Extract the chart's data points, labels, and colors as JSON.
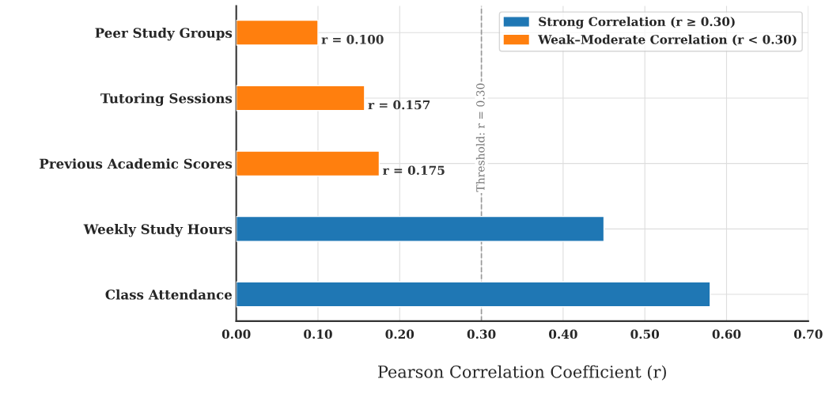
{
  "chart_data": {
    "type": "bar",
    "orientation": "horizontal",
    "xlabel": "Pearson Correlation Coefficient (r)",
    "categories": [
      "Peer Study Groups",
      "Tutoring Sessions",
      "Previous Academic Scores",
      "Weekly Study Hours",
      "Class Attendance"
    ],
    "series": [
      {
        "name": "Strong Correlation (r ≥ 0.30)",
        "color": "#1f77b4",
        "values": [
          null,
          null,
          null,
          0.45,
          0.58
        ]
      },
      {
        "name": "Weak–Moderate Correlation (r < 0.30)",
        "color": "#ff7f0e",
        "values": [
          0.1,
          0.157,
          0.175,
          null,
          null
        ],
        "value_labels": [
          "r = 0.100",
          "r = 0.157",
          "r = 0.175",
          null,
          null
        ]
      }
    ],
    "xlim": [
      0,
      0.7
    ],
    "xticks": [
      {
        "value": 0,
        "label": "0.00"
      },
      {
        "value": 0.1,
        "label": "0.10"
      },
      {
        "value": 0.2,
        "label": "0.20"
      },
      {
        "value": 0.3,
        "label": "0.30"
      },
      {
        "value": 0.4,
        "label": "0.40"
      },
      {
        "value": 0.5,
        "label": "0.50"
      },
      {
        "value": 0.6,
        "label": "0.60"
      },
      {
        "value": 0.7,
        "label": "0.70"
      }
    ],
    "ref_lines": [
      {
        "axis": "x",
        "value": 0.3,
        "label": "Threshold: r = 0.30",
        "color": "#999999",
        "line_style": "dashed"
      }
    ],
    "grid": true,
    "legend": "top right"
  }
}
